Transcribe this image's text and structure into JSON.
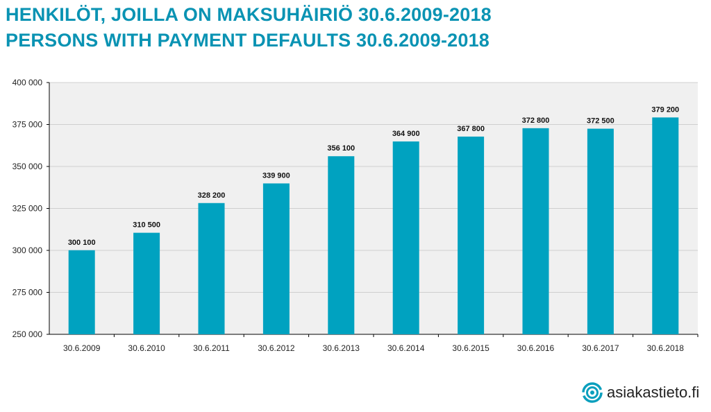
{
  "title_fi": "HENKILÖT, JOILLA ON MAKSUHÄIRIÖ 30.6.2009-2018",
  "title_en": "PERSONS WITH PAYMENT DEFAULTS 30.6.2009-2018",
  "logo_text": "asiakastieto.fi",
  "colors": {
    "bar": "#00a2c0",
    "title": "#0a93b3",
    "plot_bg": "#f0f0f0",
    "grid": "#cfcfcf"
  },
  "chart_data": {
    "type": "bar",
    "categories": [
      "30.6.2009",
      "30.6.2010",
      "30.6.2011",
      "30.6.2012",
      "30.6.2013",
      "30.6.2014",
      "30.6.2015",
      "30.6.2016",
      "30.6.2017",
      "30.6.2018"
    ],
    "values": [
      300100,
      310500,
      328200,
      339900,
      356100,
      364900,
      367800,
      372800,
      372500,
      379200
    ],
    "data_labels": [
      "300 100",
      "310 500",
      "328 200",
      "339 900",
      "356 100",
      "364 900",
      "367 800",
      "372 800",
      "372 500",
      "379 200"
    ],
    "ylim": [
      250000,
      400000
    ],
    "yticks": [
      250000,
      275000,
      300000,
      325000,
      350000,
      375000,
      400000
    ],
    "ytick_labels": [
      "250 000",
      "275 000",
      "300 000",
      "325 000",
      "350 000",
      "375 000",
      "400 000"
    ],
    "grid": true,
    "legend": "none"
  }
}
